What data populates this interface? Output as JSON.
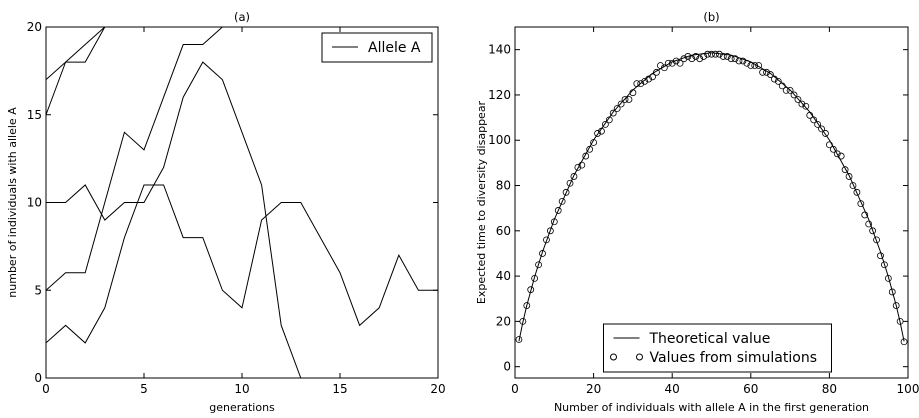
{
  "chart_data": [
    {
      "type": "line",
      "title": "(a)",
      "xlabel": "generations",
      "ylabel": "number of individuals with allele A",
      "x": [
        0,
        1,
        2,
        3,
        4,
        5,
        6,
        7,
        8,
        9,
        10,
        11,
        12,
        13,
        14,
        15,
        16,
        17,
        18,
        19,
        20
      ],
      "series": [
        {
          "name": "Allele A",
          "color": "#000000",
          "values": [
            17,
            18,
            19,
            20,
            20,
            20,
            20,
            20,
            20,
            20,
            20,
            20,
            20,
            20,
            20,
            20,
            20,
            20,
            20,
            20,
            20
          ]
        },
        {
          "color": "#000000",
          "values": [
            15,
            18,
            18,
            20,
            20,
            20,
            20,
            20,
            20,
            20,
            20,
            20,
            20,
            20,
            20,
            20,
            20,
            20,
            20,
            20,
            20
          ]
        },
        {
          "color": "#000000",
          "values": [
            10,
            10,
            11,
            9,
            10,
            10,
            12,
            16,
            18,
            17,
            14,
            11,
            3,
            0,
            0,
            0,
            0,
            0,
            0,
            0,
            0
          ]
        },
        {
          "color": "#000000",
          "values": [
            5,
            6,
            6,
            10,
            14,
            13,
            16,
            19,
            19,
            20,
            20,
            20,
            20,
            20,
            20,
            20,
            20,
            20,
            20,
            20,
            20
          ]
        },
        {
          "color": "#000000",
          "values": [
            2,
            3,
            2,
            4,
            8,
            11,
            11,
            8,
            8,
            5,
            4,
            9,
            10,
            10,
            8,
            6,
            3,
            4,
            7,
            5,
            5
          ]
        }
      ],
      "xlim": [
        0,
        20
      ],
      "ylim": [
        0,
        20
      ],
      "xticks": [
        0,
        5,
        10,
        15,
        20
      ],
      "yticks": [
        0,
        5,
        10,
        15,
        20
      ],
      "legend": "upper right"
    },
    {
      "type": "line",
      "title": "(b)",
      "xlabel": "Number of individuals with allele A in the first generation",
      "ylabel": "Expected time to diversity disappear",
      "series": [
        {
          "name": "Theoretical value",
          "type": "line",
          "color": "#000000",
          "x": [
            1,
            2,
            3,
            5,
            7,
            10,
            15,
            20,
            25,
            30,
            35,
            40,
            45,
            50,
            55,
            60,
            65,
            70,
            75,
            80,
            85,
            90,
            93,
            95,
            97,
            98,
            99
          ],
          "values": [
            11.2,
            19.6,
            27.0,
            39.7,
            50.7,
            65.0,
            84.5,
            100.1,
            112.5,
            122.2,
            129.5,
            134.6,
            137.6,
            138.6,
            137.6,
            134.6,
            129.5,
            122.2,
            112.5,
            100.1,
            84.5,
            65.0,
            50.7,
            39.7,
            27.0,
            19.6,
            11.2
          ]
        },
        {
          "name": "Values from simulations",
          "type": "scatter",
          "color": "#000000",
          "x": [
            1,
            2,
            3,
            4,
            5,
            6,
            7,
            8,
            9,
            10,
            11,
            12,
            13,
            14,
            15,
            16,
            17,
            18,
            19,
            20,
            21,
            22,
            23,
            24,
            25,
            26,
            27,
            28,
            29,
            30,
            31,
            32,
            33,
            34,
            35,
            36,
            37,
            38,
            39,
            40,
            41,
            42,
            43,
            44,
            45,
            46,
            47,
            48,
            49,
            50,
            51,
            52,
            53,
            54,
            55,
            56,
            57,
            58,
            59,
            60,
            61,
            62,
            63,
            64,
            65,
            66,
            67,
            68,
            69,
            70,
            71,
            72,
            73,
            74,
            75,
            76,
            77,
            78,
            79,
            80,
            81,
            82,
            83,
            84,
            85,
            86,
            87,
            88,
            89,
            90,
            91,
            92,
            93,
            94,
            95,
            96,
            97,
            98,
            99
          ],
          "values": [
            12,
            20,
            27,
            34,
            39,
            45,
            50,
            56,
            60,
            64,
            69,
            73,
            77,
            81,
            84,
            88,
            89,
            93,
            96,
            99,
            103,
            104,
            107,
            109,
            112,
            114,
            116,
            118,
            118,
            121,
            125,
            125,
            126,
            127,
            128,
            130,
            133,
            132,
            134,
            134,
            135,
            134,
            136,
            137,
            136,
            137,
            136,
            137,
            138,
            138,
            138,
            138,
            137,
            137,
            136,
            136,
            135,
            135,
            134,
            133,
            133,
            133,
            130,
            130,
            129,
            127,
            126,
            124,
            122,
            122,
            120,
            118,
            116,
            115,
            111,
            109,
            107,
            105,
            103,
            98,
            96,
            94,
            93,
            87,
            84,
            80,
            77,
            72,
            67,
            63,
            60,
            56,
            49,
            45,
            39,
            33,
            27,
            20,
            11
          ]
        }
      ],
      "xlim": [
        0,
        100
      ],
      "ylim": [
        -5,
        150
      ],
      "xticks": [
        0,
        20,
        40,
        60,
        80,
        100
      ],
      "yticks": [
        0,
        20,
        40,
        60,
        80,
        100,
        120,
        140
      ],
      "legend": "lower center"
    }
  ]
}
